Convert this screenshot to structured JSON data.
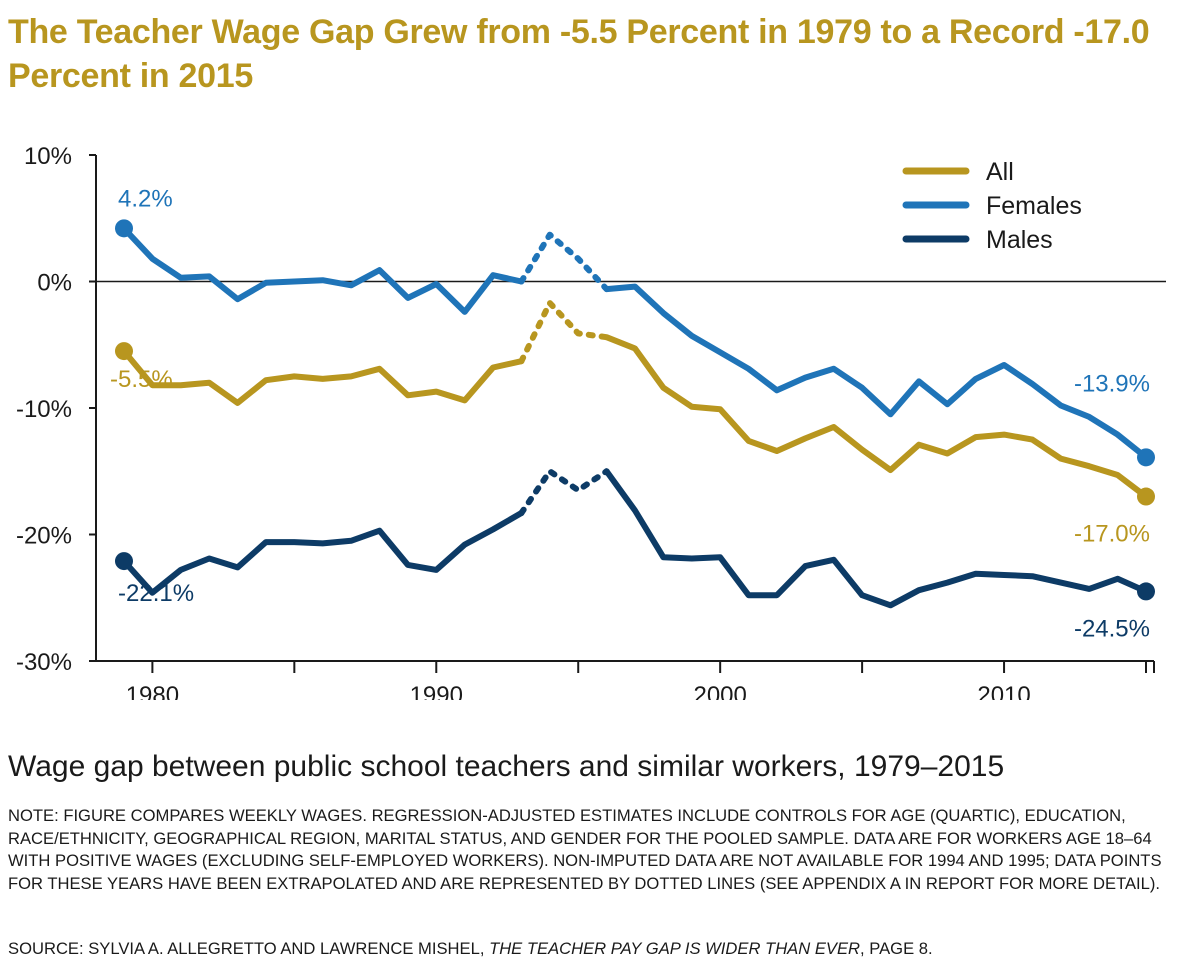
{
  "title": "The Teacher Wage Gap Grew from -5.5 Percent in 1979 to a Record -17.0 Percent in 2015",
  "subtitle": "Wage gap between public school teachers and similar workers, 1979–2015",
  "note": "NOTE: FIGURE COMPARES WEEKLY WAGES. REGRESSION-ADJUSTED ESTIMATES INCLUDE CONTROLS FOR AGE (QUARTIC), EDUCATION, RACE/ETHNICITY, GEOGRAPHICAL REGION, MARITAL STATUS, AND GENDER FOR THE POOLED SAMPLE. DATA ARE FOR WORKERS AGE 18–64 WITH POSITIVE WAGES (EXCLUDING SELF-EMPLOYED WORKERS). NON-IMPUTED DATA ARE NOT AVAILABLE FOR 1994 AND 1995; DATA POINTS FOR THESE YEARS HAVE BEEN EXTRAPOLATED AND ARE REPRESENTED BY DOTTED LINES (SEE APPENDIX A IN REPORT FOR MORE DETAIL).",
  "source": {
    "prefix": "SOURCE: SYLVIA A. ALLEGRETTO AND LAWRENCE MISHEL, ",
    "title": "THE TEACHER PAY GAP IS WIDER THAN EVER",
    "suffix": ", PAGE 8."
  },
  "colors": {
    "title": "#b8961f",
    "all": "#b8961f",
    "females": "#1f74b8",
    "males": "#0d3b66",
    "axis": "#1a1a1a"
  },
  "chart_data": {
    "type": "line",
    "x": [
      1979,
      1980,
      1981,
      1982,
      1983,
      1984,
      1985,
      1986,
      1987,
      1988,
      1989,
      1990,
      1991,
      1992,
      1993,
      1994,
      1995,
      1996,
      1997,
      1998,
      1999,
      2000,
      2001,
      2002,
      2003,
      2004,
      2005,
      2006,
      2007,
      2008,
      2009,
      2010,
      2011,
      2012,
      2013,
      2014,
      2015
    ],
    "ylim": [
      -30,
      10
    ],
    "yticks": [
      10,
      0,
      -10,
      -20,
      -30
    ],
    "ytick_labels": [
      "10%",
      "0%",
      "-10%",
      "-20%",
      "-30%"
    ],
    "xticks": [
      1980,
      1990,
      2000,
      2010
    ],
    "xtick_labels": [
      "1980",
      "1990",
      "2000",
      "2010"
    ],
    "dotted_years": [
      1994,
      1995
    ],
    "legend": {
      "position": "top-right"
    },
    "series": [
      {
        "name": "All",
        "color": "#b8961f",
        "values": [
          -5.5,
          -8.2,
          -8.2,
          -8.0,
          -9.6,
          -7.8,
          -7.5,
          -7.7,
          -7.5,
          -6.9,
          -9.0,
          -8.7,
          -9.4,
          -6.8,
          -6.3,
          -1.7,
          -4.1,
          -4.4,
          -5.3,
          -8.4,
          -9.9,
          -10.1,
          -12.6,
          -13.4,
          -12.4,
          -11.5,
          -13.3,
          -14.9,
          -12.9,
          -13.6,
          -12.3,
          -12.1,
          -12.5,
          -14.0,
          -14.6,
          -15.3,
          -17.0
        ],
        "start_label": "-5.5%",
        "end_label": "-17.0%"
      },
      {
        "name": "Females",
        "color": "#1f74b8",
        "values": [
          4.2,
          1.8,
          0.3,
          0.4,
          -1.4,
          -0.1,
          0.0,
          0.1,
          -0.3,
          0.9,
          -1.3,
          -0.2,
          -2.4,
          0.5,
          0.0,
          3.7,
          1.8,
          -0.6,
          -0.4,
          -2.5,
          -4.3,
          -5.6,
          -6.9,
          -8.6,
          -7.6,
          -6.9,
          -8.4,
          -10.5,
          -7.9,
          -9.7,
          -7.7,
          -6.6,
          -8.1,
          -9.8,
          -10.7,
          -12.1,
          -13.9
        ],
        "start_label": "4.2%",
        "end_label": "-13.9%"
      },
      {
        "name": "Males",
        "color": "#0d3b66",
        "values": [
          -22.1,
          -24.6,
          -22.8,
          -21.9,
          -22.6,
          -20.6,
          -20.6,
          -20.7,
          -20.5,
          -19.7,
          -22.4,
          -22.8,
          -20.8,
          -19.6,
          -18.3,
          -15.0,
          -16.5,
          -15.0,
          -18.1,
          -21.8,
          -21.9,
          -21.8,
          -24.8,
          -24.8,
          -22.5,
          -22.0,
          -24.8,
          -25.6,
          -24.4,
          -23.8,
          -23.1,
          -23.2,
          -23.3,
          -23.8,
          -24.3,
          -23.5,
          -24.5
        ],
        "start_label": "-22.1%",
        "end_label": "-24.5%"
      }
    ]
  }
}
